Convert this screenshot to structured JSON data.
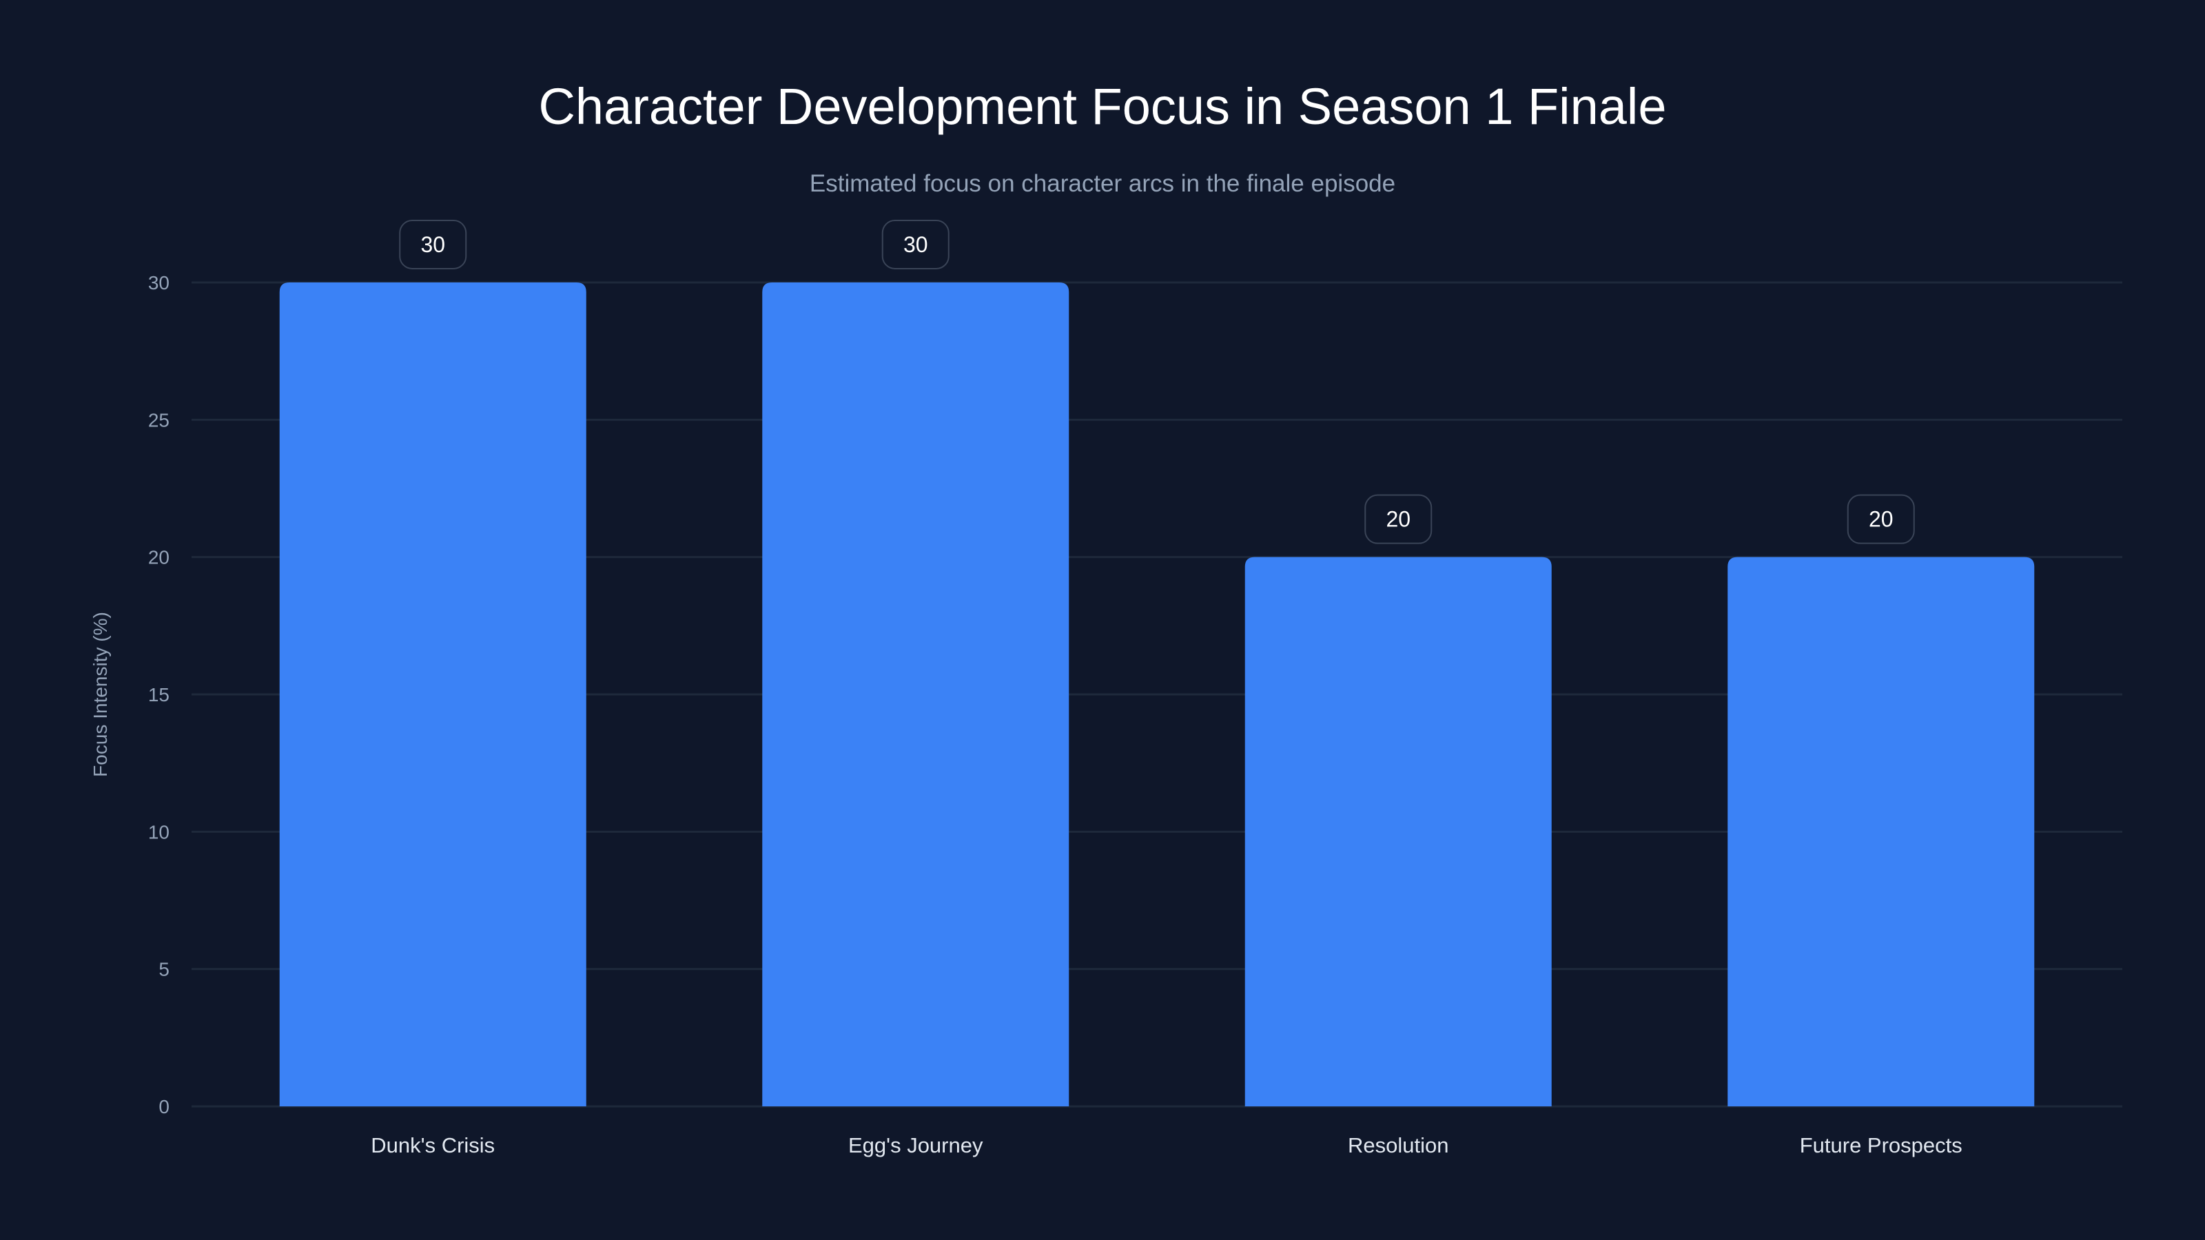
{
  "chart_data": {
    "type": "bar",
    "title": "Character Development Focus in Season 1 Finale",
    "subtitle": "Estimated focus on character arcs in the finale episode",
    "xlabel": "",
    "ylabel": "Focus Intensity (%)",
    "categories": [
      "Dunk's Crisis",
      "Egg's Journey",
      "Resolution",
      "Future Prospects"
    ],
    "values": [
      30,
      30,
      20,
      20
    ],
    "ylim": [
      0,
      30
    ],
    "yticks": [
      0,
      5,
      10,
      15,
      20,
      25,
      30
    ],
    "grid": true,
    "legend": "none",
    "colors": {
      "bar": "#3b82f6",
      "background": "#0f172a",
      "grid": "#1e293b"
    }
  }
}
